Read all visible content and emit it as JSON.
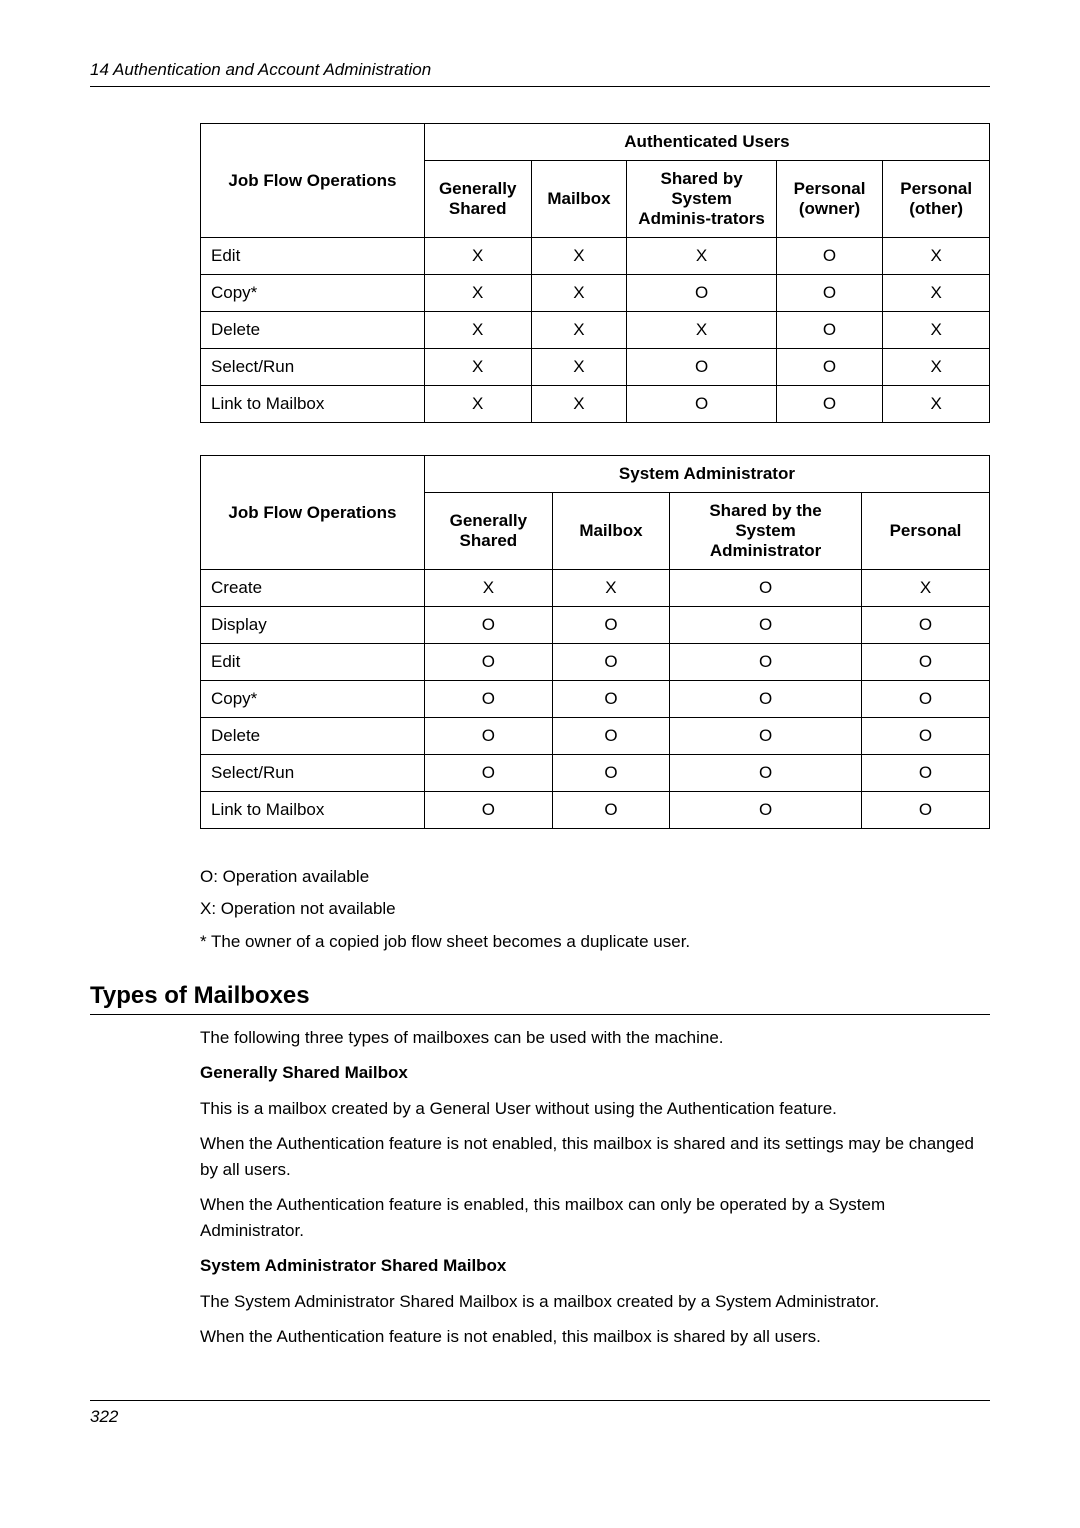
{
  "header": {
    "title": "14  Authentication and Account Administration"
  },
  "table1": {
    "col_ops": "Job Flow Operations",
    "group_header": "Authenticated Users",
    "cols": [
      "Generally Shared",
      "Mailbox",
      "Shared by System Adminis-trators",
      "Personal (owner)",
      "Personal (other)"
    ],
    "rows": [
      {
        "op": "Edit",
        "v": [
          "X",
          "X",
          "X",
          "O",
          "X"
        ]
      },
      {
        "op": "Copy*",
        "v": [
          "X",
          "X",
          "O",
          "O",
          "X"
        ]
      },
      {
        "op": "Delete",
        "v": [
          "X",
          "X",
          "X",
          "O",
          "X"
        ]
      },
      {
        "op": "Select/Run",
        "v": [
          "X",
          "X",
          "O",
          "O",
          "X"
        ]
      },
      {
        "op": "Link to Mailbox",
        "v": [
          "X",
          "X",
          "O",
          "O",
          "X"
        ]
      }
    ]
  },
  "table2": {
    "col_ops": "Job Flow Operations",
    "group_header": "System Administrator",
    "cols": [
      "Generally Shared",
      "Mailbox",
      "Shared by the System Administrator",
      "Personal"
    ],
    "rows": [
      {
        "op": "Create",
        "v": [
          "X",
          "X",
          "O",
          "X"
        ]
      },
      {
        "op": "Display",
        "v": [
          "O",
          "O",
          "O",
          "O"
        ]
      },
      {
        "op": "Edit",
        "v": [
          "O",
          "O",
          "O",
          "O"
        ]
      },
      {
        "op": "Copy*",
        "v": [
          "O",
          "O",
          "O",
          "O"
        ]
      },
      {
        "op": "Delete",
        "v": [
          "O",
          "O",
          "O",
          "O"
        ]
      },
      {
        "op": "Select/Run",
        "v": [
          "O",
          "O",
          "O",
          "O"
        ]
      },
      {
        "op": "Link to Mailbox",
        "v": [
          "O",
          "O",
          "O",
          "O"
        ]
      }
    ]
  },
  "legend": {
    "l1": "O: Operation available",
    "l2": "X:  Operation not available",
    "l3": "*   The owner of a copied job flow sheet becomes a duplicate user."
  },
  "section": {
    "title": "Types of Mailboxes",
    "intro": "The following three types of mailboxes can be used with the machine.",
    "sub1_title": "Generally Shared Mailbox",
    "sub1_p1": "This is a mailbox created by a General User without using the Authentication feature.",
    "sub1_p2": "When the Authentication feature is not enabled, this mailbox is shared and its settings may be changed by all users.",
    "sub1_p3": "When the Authentication feature is enabled, this mailbox can only be operated by a System Administrator.",
    "sub2_title": "System Administrator Shared Mailbox",
    "sub2_p1": "The System Administrator Shared Mailbox is a mailbox created by a System Administrator.",
    "sub2_p2": "When the Authentication feature is not enabled, this mailbox is shared by all users."
  },
  "footer": {
    "page": "322"
  }
}
